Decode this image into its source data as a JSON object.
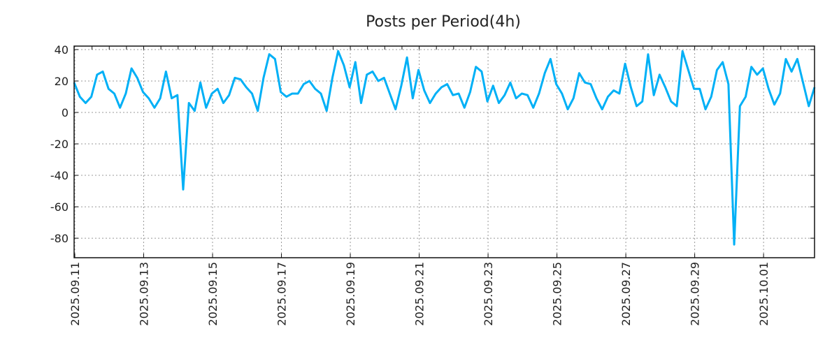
{
  "chart_data": {
    "type": "line",
    "title": "Posts per Period(4h)",
    "xlabel": "",
    "ylabel": "",
    "start_date": "2025-09-11",
    "step_hours": 4,
    "xlim_days": [
      0,
      21.5
    ],
    "ylim": [
      -92.4,
      42.2
    ],
    "yticks": [
      40,
      20,
      0,
      -20,
      -40,
      -60,
      -80
    ],
    "xtick_labels": [
      "2025.09.11",
      "2025.09.13",
      "2025.09.15",
      "2025.09.17",
      "2025.09.19",
      "2025.09.21",
      "2025.09.23",
      "2025.09.25",
      "2025.09.27",
      "2025.09.29",
      "2025.10.01"
    ],
    "xtick_days": [
      0,
      2,
      4,
      6,
      8,
      10,
      12,
      14,
      16,
      18,
      20
    ],
    "grid": true,
    "series": [
      {
        "name": "Posts",
        "color": "#00b0f6",
        "values": [
          19,
          10,
          6,
          10,
          24,
          26,
          15,
          12,
          3,
          12,
          28,
          22,
          13,
          9,
          3,
          9,
          26,
          9,
          11,
          -49,
          6,
          1,
          19,
          3,
          12,
          15,
          6,
          11,
          22,
          21,
          16,
          12,
          1,
          22,
          37,
          34,
          13,
          10,
          12,
          12,
          18,
          20,
          15,
          12,
          1,
          22,
          39,
          30,
          16,
          32,
          6,
          24,
          26,
          20,
          22,
          12,
          2,
          17,
          35,
          9,
          27,
          14,
          6,
          12,
          16,
          18,
          11,
          12,
          3,
          13,
          29,
          26,
          7,
          17,
          6,
          11,
          19,
          9,
          12,
          11,
          3,
          12,
          25,
          34,
          18,
          12,
          2,
          9,
          25,
          19,
          18,
          9,
          2,
          10,
          14,
          12,
          31,
          16,
          4,
          7,
          37,
          11,
          24,
          16,
          7,
          4,
          39,
          27,
          15,
          15,
          2,
          10,
          27,
          32,
          18,
          -84,
          4,
          10,
          29,
          24,
          28,
          15,
          5,
          12,
          34,
          26,
          34,
          19,
          4,
          16
        ]
      }
    ]
  }
}
